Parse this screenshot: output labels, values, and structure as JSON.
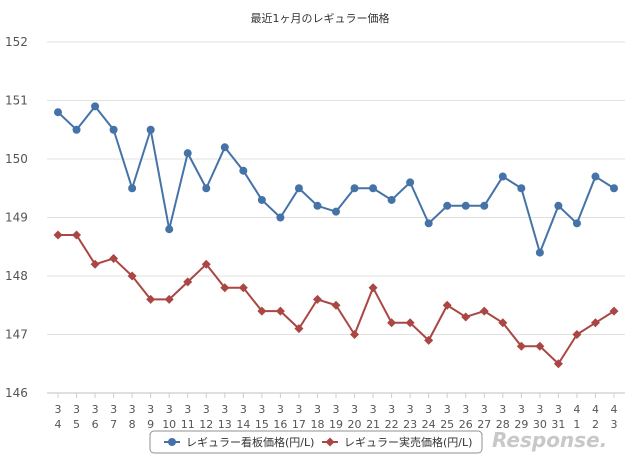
{
  "chart_data": {
    "type": "line",
    "title": "最近1ヶ月のレギュラー価格",
    "xlabel": "",
    "ylabel": "",
    "ylim": [
      146,
      152
    ],
    "yticks": [
      146,
      147,
      148,
      149,
      150,
      151,
      152
    ],
    "grid": true,
    "legend_position": "bottom",
    "categories": [
      [
        "3",
        "4"
      ],
      [
        "3",
        "5"
      ],
      [
        "3",
        "6"
      ],
      [
        "3",
        "7"
      ],
      [
        "3",
        "8"
      ],
      [
        "3",
        "9"
      ],
      [
        "3",
        "10"
      ],
      [
        "3",
        "11"
      ],
      [
        "3",
        "12"
      ],
      [
        "3",
        "13"
      ],
      [
        "3",
        "14"
      ],
      [
        "3",
        "15"
      ],
      [
        "3",
        "16"
      ],
      [
        "3",
        "17"
      ],
      [
        "3",
        "18"
      ],
      [
        "3",
        "19"
      ],
      [
        "3",
        "20"
      ],
      [
        "3",
        "21"
      ],
      [
        "3",
        "22"
      ],
      [
        "3",
        "23"
      ],
      [
        "3",
        "24"
      ],
      [
        "3",
        "25"
      ],
      [
        "3",
        "26"
      ],
      [
        "3",
        "27"
      ],
      [
        "3",
        "28"
      ],
      [
        "3",
        "29"
      ],
      [
        "3",
        "30"
      ],
      [
        "3",
        "31"
      ],
      [
        "4",
        "1"
      ],
      [
        "4",
        "2"
      ],
      [
        "4",
        "3"
      ]
    ],
    "series": [
      {
        "name": "レギュラー看板価格(円/L)",
        "color": "#4572A7",
        "marker": "circle",
        "values": [
          150.8,
          150.5,
          150.9,
          150.5,
          149.5,
          150.5,
          148.8,
          150.1,
          149.5,
          150.2,
          149.8,
          149.3,
          149.0,
          149.5,
          149.2,
          149.1,
          149.5,
          149.5,
          149.3,
          149.6,
          148.9,
          149.2,
          149.2,
          149.2,
          149.7,
          149.5,
          148.4,
          149.2,
          148.9,
          149.7,
          149.5
        ]
      },
      {
        "name": "レギュラー実売価格(円/L)",
        "color": "#AA4643",
        "marker": "diamond",
        "values": [
          148.7,
          148.7,
          148.2,
          148.3,
          148.0,
          147.6,
          147.6,
          147.9,
          148.2,
          147.8,
          147.8,
          147.4,
          147.4,
          147.1,
          147.6,
          147.5,
          147.0,
          147.8,
          147.2,
          147.2,
          146.9,
          147.5,
          147.3,
          147.4,
          147.2,
          146.8,
          146.8,
          146.5,
          147.0,
          147.2,
          147.4
        ]
      }
    ]
  },
  "watermark": {
    "text": "Response."
  }
}
